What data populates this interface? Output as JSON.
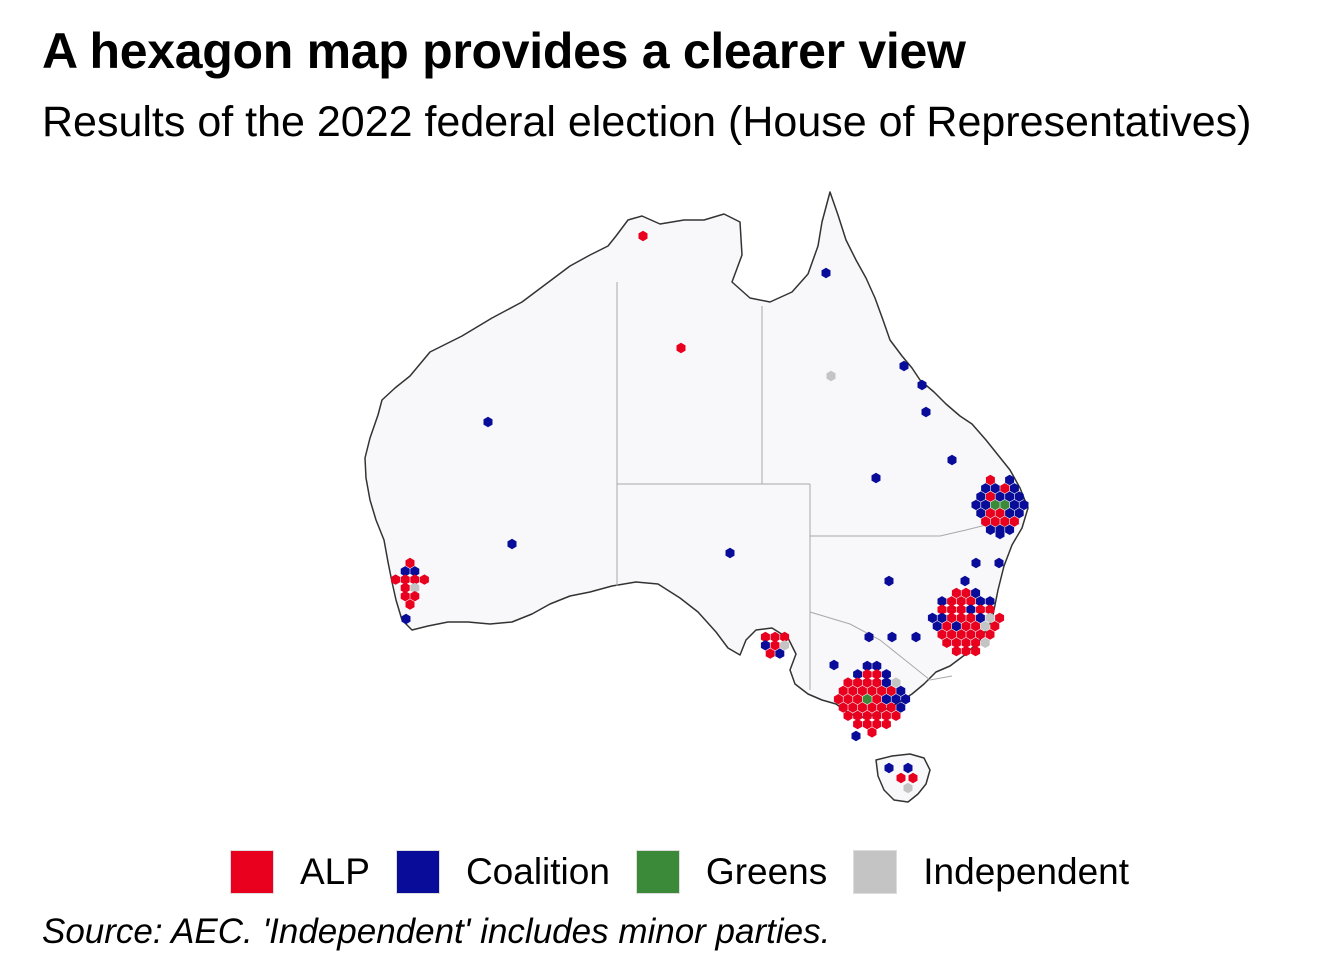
{
  "header": {
    "title": "A hexagon map provides a clearer view",
    "subtitle": "Results of the 2022 federal election (House of Representatives)"
  },
  "legend": {
    "items": [
      {
        "label": "ALP",
        "color": "#e8001e"
      },
      {
        "label": "Coalition",
        "color": "#080c99"
      },
      {
        "label": "Greens",
        "color": "#3a8a3a"
      },
      {
        "label": "Independent",
        "color": "#c4c4c4"
      }
    ]
  },
  "footer": {
    "source": "Source: AEC. 'Independent' includes minor parties."
  },
  "map_data": {
    "type": "hexagon-map",
    "region": "Australia",
    "land_color": "#f8f8fb",
    "border_color": "#333333",
    "seat_counts": {
      "ALP": 77,
      "Coalition": 58,
      "Greens": 4,
      "Independent": 12
    }
  }
}
